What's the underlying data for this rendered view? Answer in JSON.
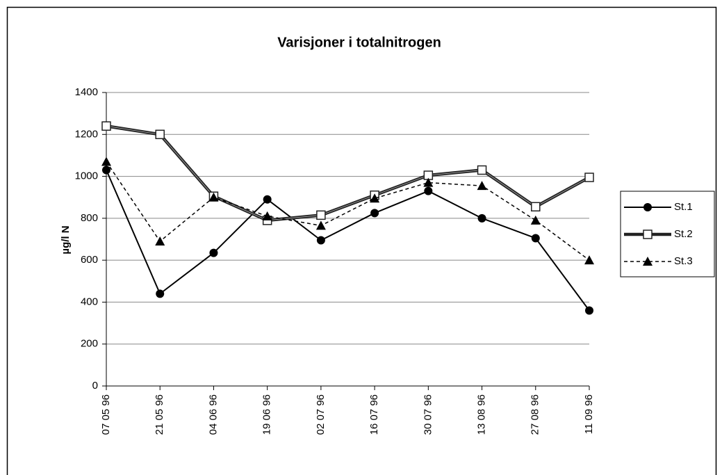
{
  "chart_data": {
    "type": "line",
    "title": "Varisjoner i totalnitrogen",
    "y_label": "µg/l N",
    "categories": [
      "07 05 96",
      "21 05 96",
      "04 06 96",
      "19 06 96",
      "02 07 96",
      "16 07 96",
      "30 07 96",
      "13 08 96",
      "27 08 96",
      "11 09 96"
    ],
    "series": [
      {
        "name": "St.1",
        "color": "#000000",
        "marker": "circle",
        "line_style": "solid",
        "values": [
          1030,
          440,
          635,
          890,
          695,
          825,
          930,
          800,
          705,
          360
        ]
      },
      {
        "name": "St.2",
        "color": "#222222",
        "marker": "square",
        "line_style": "thick",
        "values": [
          1240,
          1200,
          905,
          790,
          815,
          910,
          1005,
          1030,
          855,
          995
        ]
      },
      {
        "name": "St.3",
        "color": "#000000",
        "marker": "triangle",
        "line_style": "dashed",
        "values": [
          1070,
          690,
          900,
          810,
          765,
          895,
          970,
          955,
          790,
          600
        ]
      }
    ],
    "ylim": [
      0,
      1400
    ],
    "yticks": [
      0,
      200,
      400,
      600,
      800,
      1000,
      1200,
      1400
    ],
    "grid": true,
    "legend": "right"
  }
}
